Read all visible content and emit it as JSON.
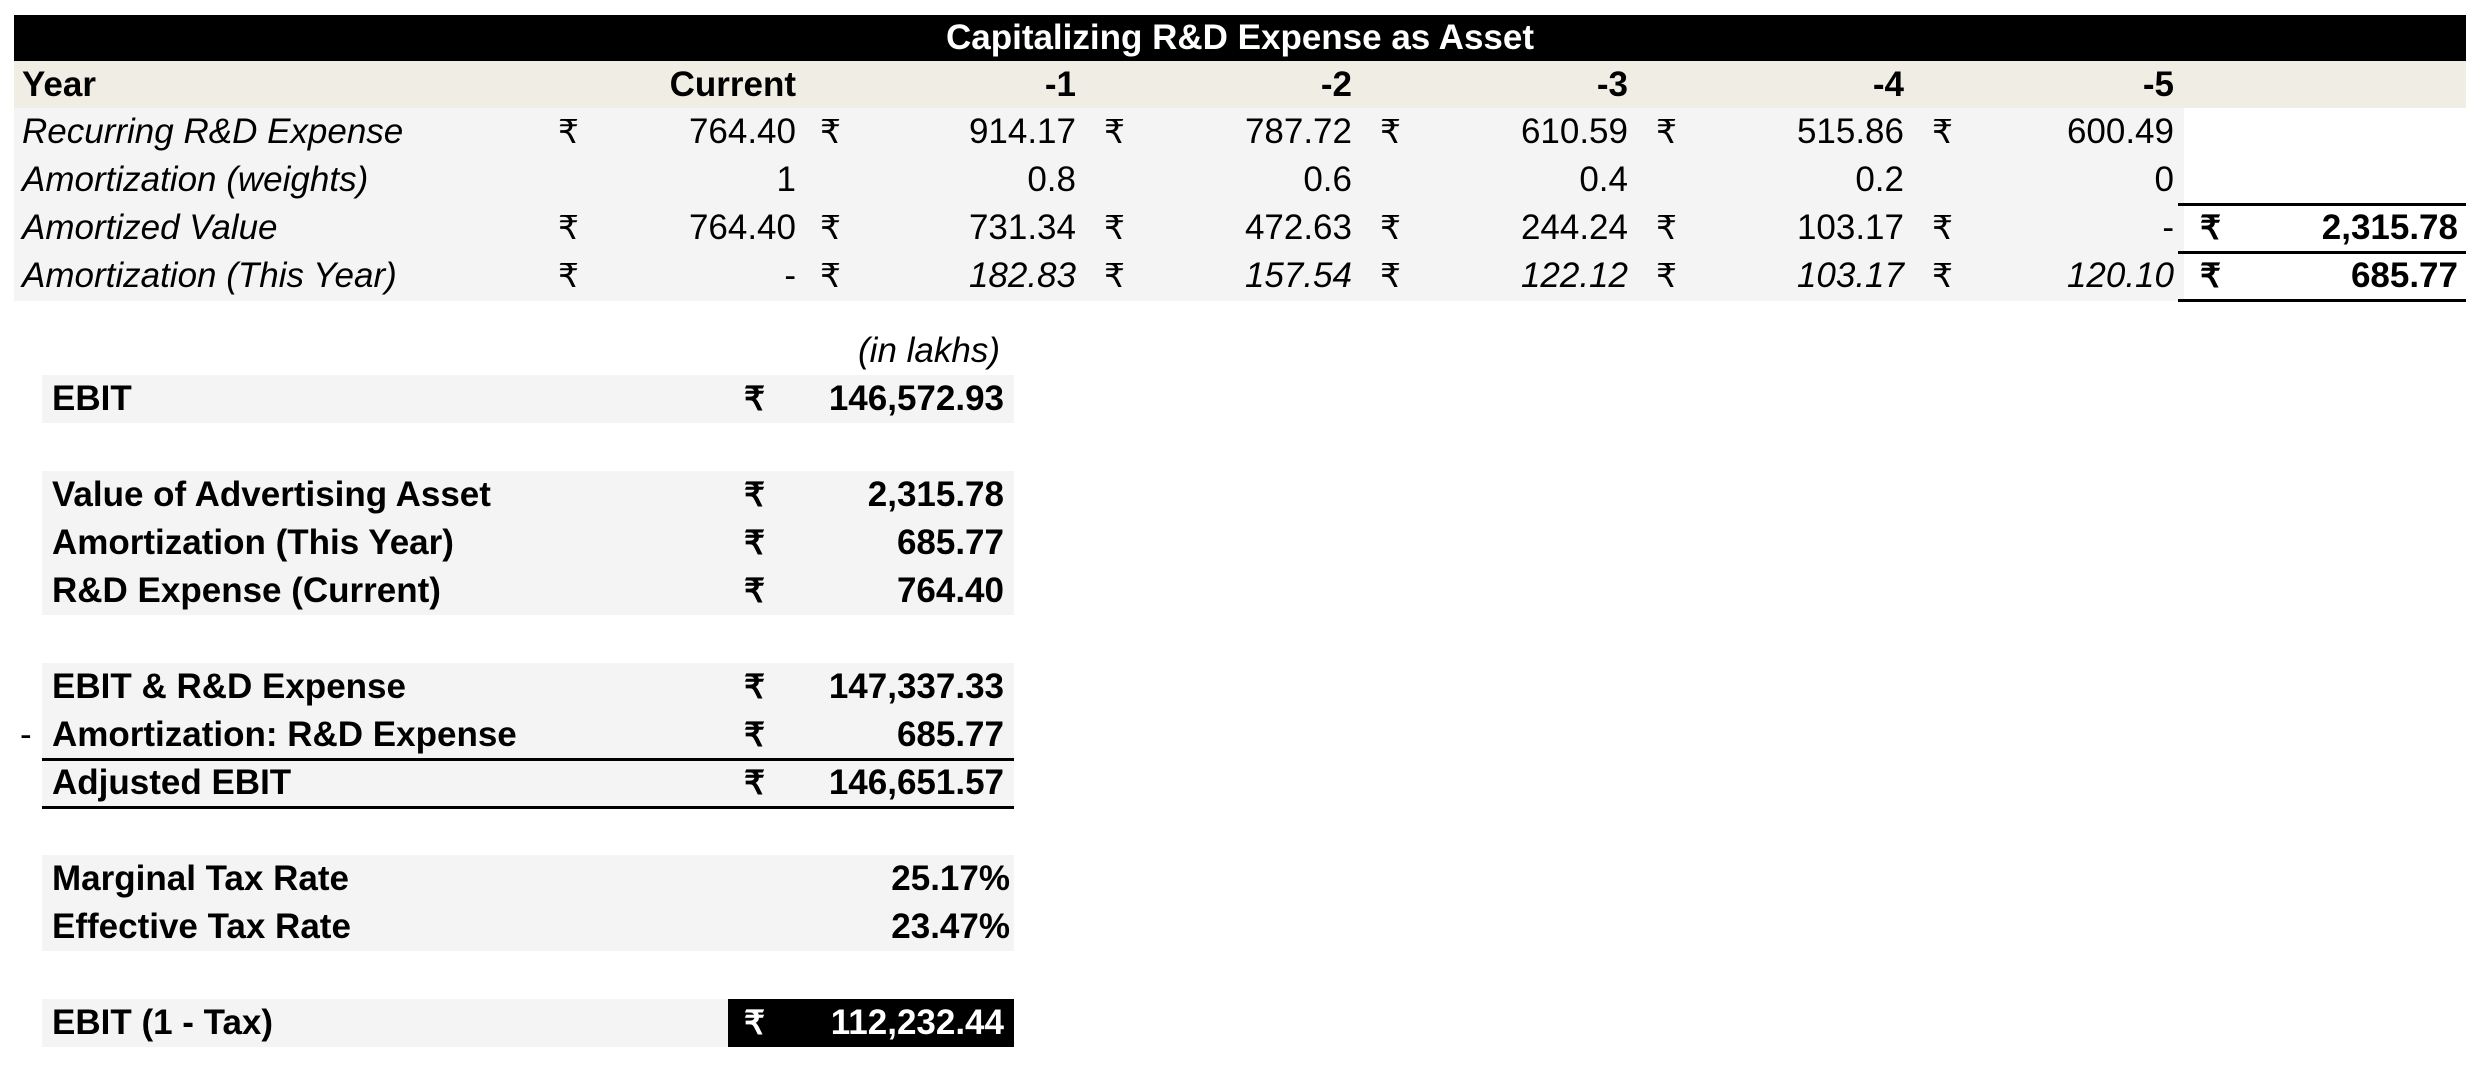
{
  "title": "Capitalizing R&D Expense as Asset",
  "currency_symbol": "₹",
  "year_row": {
    "label": "Year",
    "columns": [
      "Current",
      "-1",
      "-2",
      "-3",
      "-4",
      "-5"
    ]
  },
  "rows": [
    {
      "label": "Recurring R&D Expense",
      "values": [
        "764.40",
        "914.17",
        "787.72",
        "610.59",
        "515.86",
        "600.49"
      ]
    },
    {
      "label": "Amortization (weights)",
      "values": [
        "1",
        "0.8",
        "0.6",
        "0.4",
        "0.2",
        "0"
      ]
    },
    {
      "label": "Amortized Value",
      "values": [
        "764.40",
        "731.34",
        "472.63",
        "244.24",
        "103.17",
        "-"
      ],
      "total": "2,315.78"
    },
    {
      "label": "Amortization (This Year)",
      "values": [
        "-",
        "182.83",
        "157.54",
        "122.12",
        "103.17",
        "120.10"
      ],
      "total": "685.77"
    }
  ],
  "summary": {
    "unit_note": "(in lakhs)",
    "ebit": {
      "label": "EBIT",
      "value": "146,572.93"
    },
    "asset_value": {
      "label": "Value of Advertising Asset",
      "value": "2,315.78"
    },
    "amortization": {
      "label": "Amortization (This Year)",
      "value": "685.77"
    },
    "rd_current": {
      "label": "R&D Expense (Current)",
      "value": "764.40"
    },
    "ebit_rd": {
      "label": "EBIT & R&D Expense",
      "value": "147,337.33"
    },
    "minus_sign": "-",
    "amort_rd": {
      "label": "Amortization: R&D Expense",
      "value": "685.77"
    },
    "adjusted_ebit": {
      "label": "Adjusted EBIT",
      "value": "146,651.57"
    },
    "marginal_tax": {
      "label": "Marginal Tax Rate",
      "value": "25.17%"
    },
    "effective_tax": {
      "label": "Effective Tax Rate",
      "value": "23.47%"
    },
    "ebit_after_tax": {
      "label": "EBIT (1 - Tax)",
      "value": "112,232.44"
    }
  }
}
